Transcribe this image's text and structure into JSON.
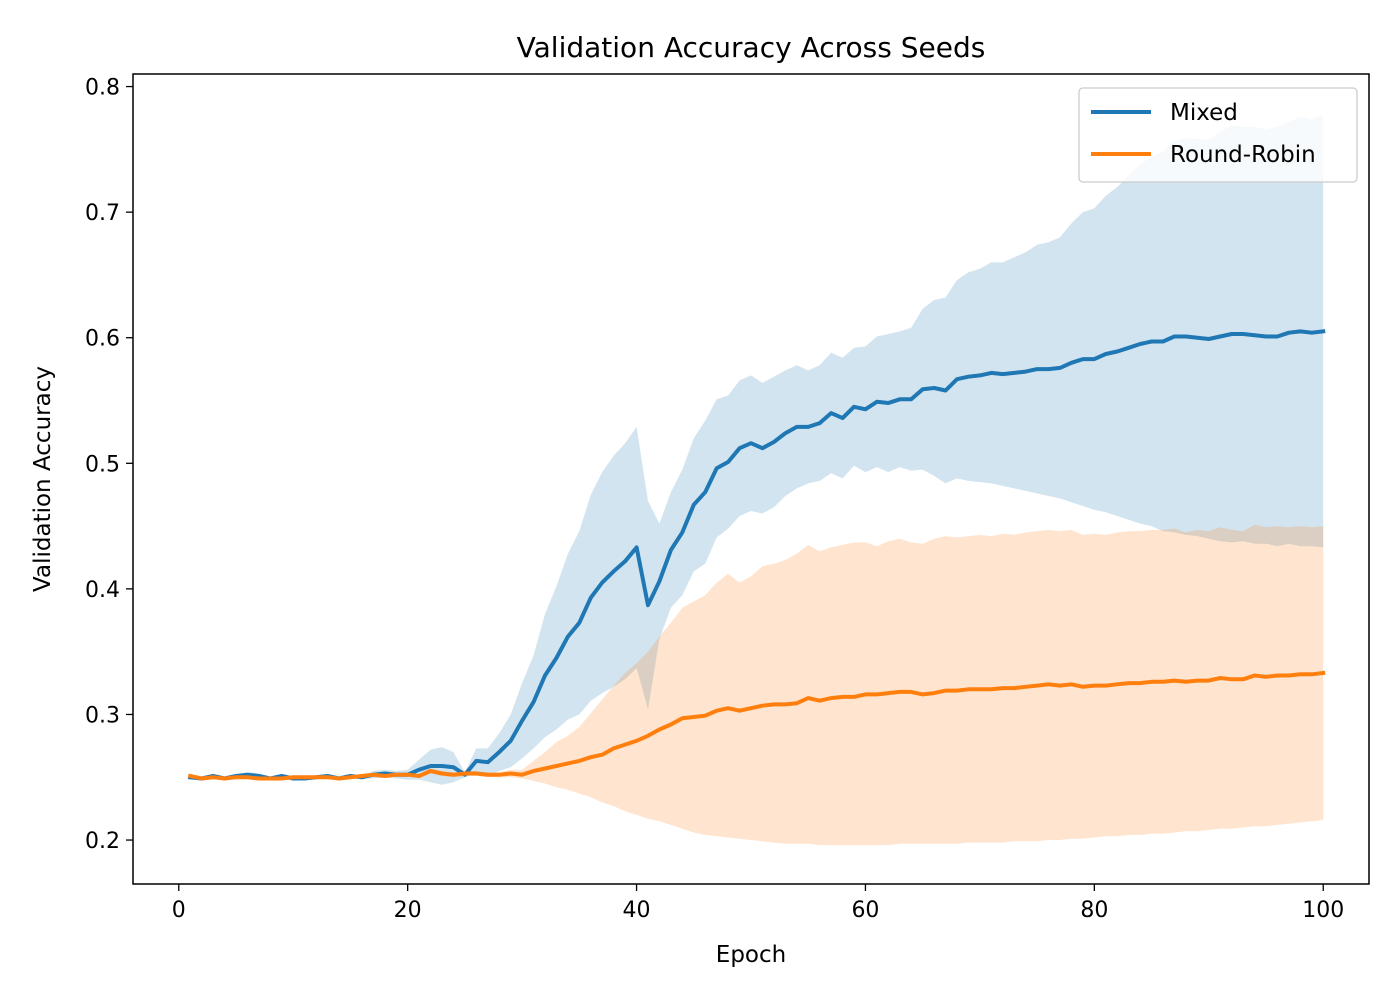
{
  "chart_data": {
    "type": "line",
    "title": "Validation Accuracy Across Seeds",
    "xlabel": "Epoch",
    "ylabel": "Validation Accuracy",
    "xlim": [
      -4,
      104
    ],
    "ylim": [
      0.165,
      0.81
    ],
    "xticks": [
      0,
      20,
      40,
      60,
      80,
      100
    ],
    "xtick_labels": [
      "0",
      "20",
      "40",
      "60",
      "80",
      "100"
    ],
    "yticks": [
      0.2,
      0.3,
      0.4,
      0.5,
      0.6,
      0.7,
      0.8
    ],
    "ytick_labels": [
      "0.2",
      "0.3",
      "0.4",
      "0.5",
      "0.6",
      "0.7",
      "0.8"
    ],
    "grid": false,
    "legend_position": "upper right",
    "series": [
      {
        "name": "Mixed",
        "color": "#1f77b4",
        "x": [
          1,
          2,
          3,
          4,
          5,
          6,
          7,
          8,
          9,
          10,
          11,
          12,
          13,
          14,
          15,
          16,
          17,
          18,
          19,
          20,
          21,
          22,
          23,
          24,
          25,
          26,
          27,
          28,
          29,
          30,
          31,
          32,
          33,
          34,
          35,
          36,
          37,
          38,
          39,
          40,
          41,
          42,
          43,
          44,
          45,
          46,
          47,
          48,
          49,
          50,
          51,
          52,
          53,
          54,
          55,
          56,
          57,
          58,
          59,
          60,
          61,
          62,
          63,
          64,
          65,
          66,
          67,
          68,
          69,
          70,
          71,
          72,
          73,
          74,
          75,
          76,
          77,
          78,
          79,
          80,
          81,
          82,
          83,
          84,
          85,
          86,
          87,
          88,
          89,
          90,
          91,
          92,
          93,
          94,
          95,
          96,
          97,
          98,
          99,
          100
        ],
        "mean": [
          0.25,
          0.249,
          0.251,
          0.249,
          0.251,
          0.252,
          0.251,
          0.249,
          0.251,
          0.249,
          0.249,
          0.25,
          0.251,
          0.249,
          0.251,
          0.25,
          0.252,
          0.253,
          0.252,
          0.252,
          0.256,
          0.259,
          0.259,
          0.258,
          0.252,
          0.263,
          0.262,
          0.27,
          0.279,
          0.295,
          0.31,
          0.331,
          0.345,
          0.362,
          0.373,
          0.393,
          0.405,
          0.414,
          0.422,
          0.433,
          0.387,
          0.406,
          0.431,
          0.445,
          0.467,
          0.477,
          0.496,
          0.501,
          0.512,
          0.516,
          0.512,
          0.517,
          0.524,
          0.529,
          0.529,
          0.532,
          0.54,
          0.536,
          0.545,
          0.543,
          0.549,
          0.548,
          0.551,
          0.551,
          0.559,
          0.56,
          0.558,
          0.567,
          0.569,
          0.57,
          0.572,
          0.571,
          0.572,
          0.573,
          0.575,
          0.575,
          0.576,
          0.58,
          0.583,
          0.583,
          0.587,
          0.589,
          0.592,
          0.595,
          0.597,
          0.597,
          0.601,
          0.601,
          0.6,
          0.599,
          0.601,
          0.603,
          0.603,
          0.602,
          0.601,
          0.601,
          0.604,
          0.605,
          0.604,
          0.605
        ],
        "lower": [
          0.249,
          0.248,
          0.25,
          0.248,
          0.25,
          0.25,
          0.249,
          0.248,
          0.25,
          0.248,
          0.248,
          0.249,
          0.25,
          0.248,
          0.25,
          0.249,
          0.249,
          0.25,
          0.249,
          0.248,
          0.248,
          0.246,
          0.244,
          0.246,
          0.25,
          0.253,
          0.251,
          0.255,
          0.258,
          0.265,
          0.273,
          0.282,
          0.288,
          0.296,
          0.3,
          0.311,
          0.317,
          0.322,
          0.328,
          0.337,
          0.304,
          0.36,
          0.385,
          0.395,
          0.414,
          0.42,
          0.441,
          0.448,
          0.458,
          0.462,
          0.46,
          0.465,
          0.474,
          0.48,
          0.484,
          0.486,
          0.492,
          0.488,
          0.498,
          0.493,
          0.497,
          0.493,
          0.497,
          0.494,
          0.495,
          0.49,
          0.484,
          0.488,
          0.486,
          0.485,
          0.484,
          0.482,
          0.48,
          0.478,
          0.476,
          0.474,
          0.472,
          0.469,
          0.466,
          0.463,
          0.461,
          0.458,
          0.455,
          0.452,
          0.45,
          0.446,
          0.445,
          0.443,
          0.442,
          0.44,
          0.438,
          0.437,
          0.438,
          0.436,
          0.436,
          0.434,
          0.436,
          0.434,
          0.434,
          0.433
        ],
        "upper": [
          0.251,
          0.25,
          0.252,
          0.25,
          0.252,
          0.254,
          0.253,
          0.25,
          0.252,
          0.25,
          0.25,
          0.251,
          0.252,
          0.25,
          0.252,
          0.251,
          0.255,
          0.256,
          0.255,
          0.256,
          0.264,
          0.272,
          0.274,
          0.27,
          0.254,
          0.273,
          0.273,
          0.285,
          0.3,
          0.325,
          0.347,
          0.38,
          0.402,
          0.428,
          0.446,
          0.475,
          0.493,
          0.506,
          0.516,
          0.529,
          0.47,
          0.452,
          0.477,
          0.495,
          0.52,
          0.534,
          0.551,
          0.554,
          0.566,
          0.57,
          0.564,
          0.569,
          0.574,
          0.578,
          0.574,
          0.578,
          0.588,
          0.584,
          0.592,
          0.593,
          0.601,
          0.603,
          0.605,
          0.608,
          0.623,
          0.63,
          0.632,
          0.646,
          0.652,
          0.655,
          0.66,
          0.66,
          0.664,
          0.668,
          0.674,
          0.676,
          0.68,
          0.691,
          0.7,
          0.703,
          0.713,
          0.72,
          0.729,
          0.738,
          0.744,
          0.748,
          0.757,
          0.759,
          0.758,
          0.758,
          0.764,
          0.769,
          0.768,
          0.768,
          0.766,
          0.768,
          0.772,
          0.776,
          0.774,
          0.777
        ]
      },
      {
        "name": "Round-Robin",
        "color": "#ff7f0e",
        "x": [
          1,
          2,
          3,
          4,
          5,
          6,
          7,
          8,
          9,
          10,
          11,
          12,
          13,
          14,
          15,
          16,
          17,
          18,
          19,
          20,
          21,
          22,
          23,
          24,
          25,
          26,
          27,
          28,
          29,
          30,
          31,
          32,
          33,
          34,
          35,
          36,
          37,
          38,
          39,
          40,
          41,
          42,
          43,
          44,
          45,
          46,
          47,
          48,
          49,
          50,
          51,
          52,
          53,
          54,
          55,
          56,
          57,
          58,
          59,
          60,
          61,
          62,
          63,
          64,
          65,
          66,
          67,
          68,
          69,
          70,
          71,
          72,
          73,
          74,
          75,
          76,
          77,
          78,
          79,
          80,
          81,
          82,
          83,
          84,
          85,
          86,
          87,
          88,
          89,
          90,
          91,
          92,
          93,
          94,
          95,
          96,
          97,
          98,
          99,
          100
        ],
        "mean": [
          0.251,
          0.249,
          0.25,
          0.249,
          0.25,
          0.25,
          0.249,
          0.249,
          0.249,
          0.25,
          0.25,
          0.25,
          0.25,
          0.249,
          0.25,
          0.251,
          0.252,
          0.251,
          0.252,
          0.252,
          0.251,
          0.255,
          0.253,
          0.252,
          0.253,
          0.253,
          0.252,
          0.252,
          0.253,
          0.252,
          0.255,
          0.257,
          0.259,
          0.261,
          0.263,
          0.266,
          0.268,
          0.273,
          0.276,
          0.279,
          0.283,
          0.288,
          0.292,
          0.297,
          0.298,
          0.299,
          0.303,
          0.305,
          0.303,
          0.305,
          0.307,
          0.308,
          0.308,
          0.309,
          0.313,
          0.311,
          0.313,
          0.314,
          0.314,
          0.316,
          0.316,
          0.317,
          0.318,
          0.318,
          0.316,
          0.317,
          0.319,
          0.319,
          0.32,
          0.32,
          0.32,
          0.321,
          0.321,
          0.322,
          0.323,
          0.324,
          0.323,
          0.324,
          0.322,
          0.323,
          0.323,
          0.324,
          0.325,
          0.325,
          0.326,
          0.326,
          0.327,
          0.326,
          0.327,
          0.327,
          0.329,
          0.328,
          0.328,
          0.331,
          0.33,
          0.331,
          0.331,
          0.332,
          0.332,
          0.333
        ],
        "lower": [
          0.25,
          0.248,
          0.249,
          0.248,
          0.249,
          0.249,
          0.248,
          0.248,
          0.248,
          0.249,
          0.249,
          0.249,
          0.249,
          0.248,
          0.249,
          0.25,
          0.251,
          0.25,
          0.251,
          0.251,
          0.25,
          0.253,
          0.251,
          0.25,
          0.251,
          0.251,
          0.25,
          0.25,
          0.25,
          0.249,
          0.247,
          0.245,
          0.242,
          0.24,
          0.237,
          0.234,
          0.23,
          0.227,
          0.223,
          0.22,
          0.217,
          0.215,
          0.212,
          0.209,
          0.206,
          0.204,
          0.203,
          0.202,
          0.201,
          0.2,
          0.199,
          0.198,
          0.197,
          0.197,
          0.197,
          0.196,
          0.196,
          0.196,
          0.196,
          0.196,
          0.196,
          0.196,
          0.197,
          0.197,
          0.197,
          0.197,
          0.197,
          0.197,
          0.198,
          0.198,
          0.198,
          0.198,
          0.199,
          0.199,
          0.199,
          0.2,
          0.2,
          0.201,
          0.201,
          0.202,
          0.203,
          0.203,
          0.204,
          0.204,
          0.205,
          0.205,
          0.206,
          0.207,
          0.207,
          0.208,
          0.209,
          0.209,
          0.21,
          0.211,
          0.211,
          0.212,
          0.213,
          0.214,
          0.215,
          0.216
        ],
        "upper": [
          0.252,
          0.25,
          0.251,
          0.25,
          0.251,
          0.251,
          0.25,
          0.25,
          0.25,
          0.251,
          0.251,
          0.251,
          0.251,
          0.25,
          0.251,
          0.252,
          0.253,
          0.252,
          0.253,
          0.253,
          0.252,
          0.257,
          0.255,
          0.254,
          0.255,
          0.255,
          0.254,
          0.254,
          0.256,
          0.256,
          0.263,
          0.27,
          0.278,
          0.283,
          0.29,
          0.301,
          0.312,
          0.323,
          0.333,
          0.341,
          0.35,
          0.362,
          0.373,
          0.385,
          0.39,
          0.395,
          0.405,
          0.412,
          0.405,
          0.41,
          0.418,
          0.42,
          0.423,
          0.428,
          0.435,
          0.43,
          0.433,
          0.435,
          0.437,
          0.437,
          0.434,
          0.438,
          0.44,
          0.437,
          0.436,
          0.44,
          0.442,
          0.441,
          0.442,
          0.443,
          0.442,
          0.444,
          0.443,
          0.445,
          0.446,
          0.447,
          0.446,
          0.447,
          0.443,
          0.444,
          0.443,
          0.445,
          0.446,
          0.446,
          0.447,
          0.447,
          0.448,
          0.445,
          0.447,
          0.446,
          0.449,
          0.447,
          0.446,
          0.451,
          0.449,
          0.45,
          0.449,
          0.45,
          0.449,
          0.45
        ]
      }
    ]
  }
}
